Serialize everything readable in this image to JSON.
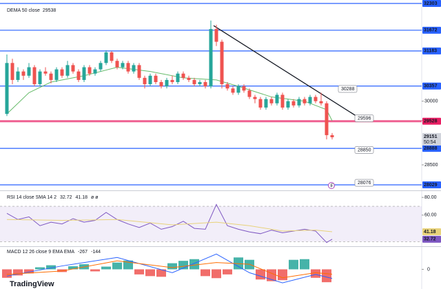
{
  "watermark": "TradingView",
  "chart_data": [
    {
      "type": "candlestick",
      "xlim": [
        -1.25,
        75.25
      ],
      "ylim": [
        27915,
        32384
      ],
      "open": [
        29700,
        30900,
        30500,
        30700,
        30600,
        30800,
        30400,
        30700,
        30650,
        30500,
        30750,
        30600,
        30850,
        30700,
        30500,
        30800,
        30650,
        30750,
        30900,
        31150,
        30950,
        30800,
        30900,
        30700,
        30850,
        30550,
        30400,
        30600,
        30450,
        30350,
        30500,
        30450,
        30650,
        30550,
        30500,
        30400,
        30450,
        30350,
        31700,
        31400,
        30400,
        30300,
        30200,
        30350,
        30250,
        30100,
        30050,
        29850,
        30050,
        29950,
        30150,
        29850,
        30000,
        29900,
        30050,
        29950,
        30100,
        30000,
        29950,
        29200
      ],
      "high": [
        31100,
        31000,
        30800,
        30750,
        30900,
        30850,
        30750,
        30800,
        30700,
        30800,
        30800,
        30950,
        30900,
        30750,
        30850,
        30850,
        30800,
        30950,
        31200,
        31180,
        31000,
        30950,
        30950,
        30900,
        30900,
        30600,
        30650,
        30650,
        30500,
        30550,
        30600,
        30700,
        30700,
        30600,
        30550,
        30500,
        30500,
        31900,
        31800,
        31450,
        30450,
        30350,
        30400,
        30400,
        30300,
        30150,
        30100,
        30100,
        30100,
        30200,
        30200,
        30050,
        30050,
        30100,
        30100,
        30150,
        30150,
        30200,
        30000,
        29250
      ],
      "low": [
        29650,
        30400,
        30450,
        30500,
        30550,
        30350,
        30350,
        30600,
        30420,
        30450,
        30550,
        30550,
        30650,
        30450,
        30450,
        30600,
        30600,
        30700,
        30850,
        30900,
        30750,
        30750,
        30650,
        30650,
        30500,
        30300,
        30350,
        30400,
        30300,
        30300,
        30400,
        30400,
        30500,
        30450,
        30350,
        30350,
        30300,
        30300,
        31300,
        30300,
        30250,
        30150,
        30150,
        30200,
        30050,
        29950,
        29800,
        29800,
        29900,
        29900,
        29800,
        29800,
        29850,
        29850,
        29900,
        29900,
        29950,
        29900,
        29100,
        29100
      ],
      "close": [
        30900,
        30500,
        30700,
        30600,
        30800,
        30400,
        30700,
        30650,
        30500,
        30750,
        30600,
        30850,
        30700,
        30500,
        30800,
        30650,
        30750,
        30900,
        31150,
        30950,
        30800,
        30900,
        30700,
        30850,
        30550,
        30400,
        30600,
        30450,
        30350,
        30500,
        30450,
        30650,
        30550,
        30500,
        30400,
        30450,
        30350,
        31700,
        31400,
        30400,
        30300,
        30200,
        30350,
        30250,
        30100,
        30050,
        29850,
        30050,
        29950,
        30150,
        29850,
        30000,
        29900,
        30050,
        29950,
        30100,
        30000,
        29950,
        29200,
        29150
      ],
      "up_color": "#26a69a",
      "down_color": "#ef5350",
      "dema": {
        "name": "DEMA 50 close",
        "color": "#66bb6a",
        "x": [
          0,
          4,
          8,
          14,
          20,
          26,
          32,
          38,
          42,
          48,
          54,
          58,
          59
        ],
        "values": [
          29700,
          30200,
          30450,
          30600,
          30800,
          30700,
          30550,
          30500,
          30350,
          30100,
          30000,
          29800,
          29538
        ]
      },
      "trendline": {
        "x": [
          37.5,
          64
        ],
        "values": [
          31780,
          29600
        ],
        "color": "#131722"
      },
      "levels": [
        {
          "value": 32303,
          "color": "#2962ff"
        },
        {
          "value": 31672,
          "color": "#2962ff"
        },
        {
          "value": 31183,
          "color": "#2962ff"
        },
        {
          "value": 30357,
          "color": "#2962ff"
        },
        {
          "value": 29528,
          "color": "#e91e63"
        },
        {
          "value": 28888,
          "color": "#2962ff"
        },
        {
          "value": 28029,
          "color": "#2962ff"
        }
      ],
      "yticks": [
        30000,
        29548,
        28500
      ],
      "annotations": [
        30288,
        29596,
        28850,
        28076
      ],
      "last_price": 29151,
      "countdown": "50:54"
    },
    {
      "type": "line",
      "title": "RSI 14 close SMA 14 2",
      "extra": "ø ø",
      "xlim": [
        -1.25,
        75.25
      ],
      "ylim": [
        25.6,
        85.6
      ],
      "yticks": [
        {
          "value": 80,
          "label": "80.00"
        },
        {
          "value": 60,
          "label": "60.00"
        }
      ],
      "band": [
        30,
        70
      ],
      "series": [
        {
          "name": "RSI",
          "color": "#7e57c2",
          "x": [
            0,
            2,
            4,
            6,
            8,
            10,
            12,
            14,
            16,
            18,
            20,
            22,
            24,
            26,
            28,
            30,
            32,
            34,
            36,
            38,
            40,
            42,
            44,
            46,
            48,
            50,
            52,
            54,
            56,
            58,
            59
          ],
          "values": [
            62,
            55,
            58,
            48,
            52,
            50,
            56,
            52,
            54,
            63,
            55,
            50,
            46,
            51,
            44,
            47,
            53,
            45,
            44,
            72,
            48,
            44,
            41,
            39,
            43,
            40,
            42,
            44,
            42,
            29,
            32.72
          ]
        },
        {
          "name": "SMA",
          "color": "#e8d27a",
          "x": [
            0,
            10,
            20,
            30,
            38,
            44,
            50,
            56,
            59
          ],
          "values": [
            55,
            54,
            55,
            49,
            52,
            48,
            42,
            43,
            41.18
          ]
        }
      ]
    },
    {
      "type": "bar",
      "title": "MACD 12 26 close 9 EMA EMA",
      "xlim": [
        -1.25,
        75.25
      ],
      "ylim": [
        -580,
        640
      ],
      "yticks": [
        0
      ],
      "x": [
        0,
        2,
        4,
        6,
        8,
        10,
        12,
        14,
        16,
        18,
        20,
        22,
        24,
        26,
        28,
        30,
        32,
        34,
        36,
        38,
        40,
        42,
        44,
        46,
        48,
        50,
        52,
        54,
        56,
        58
      ],
      "values": [
        -250,
        -180,
        -120,
        60,
        120,
        -80,
        90,
        150,
        -60,
        80,
        200,
        260,
        -150,
        -200,
        -220,
        180,
        250,
        300,
        -200,
        -260,
        -150,
        350,
        280,
        -300,
        -350,
        -320,
        280,
        300,
        -250,
        -380
      ],
      "up_color": "#26a69a",
      "down_color": "#ef5350",
      "series": [
        {
          "name": "MACD",
          "color": "#2962ff",
          "x": [
            0,
            10,
            20,
            30,
            38,
            44,
            50,
            56,
            59
          ],
          "values": [
            -200,
            100,
            350,
            -100,
            450,
            -100,
            -400,
            -150,
            -267
          ]
        },
        {
          "name": "Signal",
          "color": "#ff6d00",
          "x": [
            0,
            10,
            20,
            30,
            38,
            44,
            50,
            56,
            59
          ],
          "values": [
            -150,
            -50,
            250,
            50,
            200,
            150,
            -250,
            -100,
            -144
          ]
        }
      ]
    }
  ]
}
